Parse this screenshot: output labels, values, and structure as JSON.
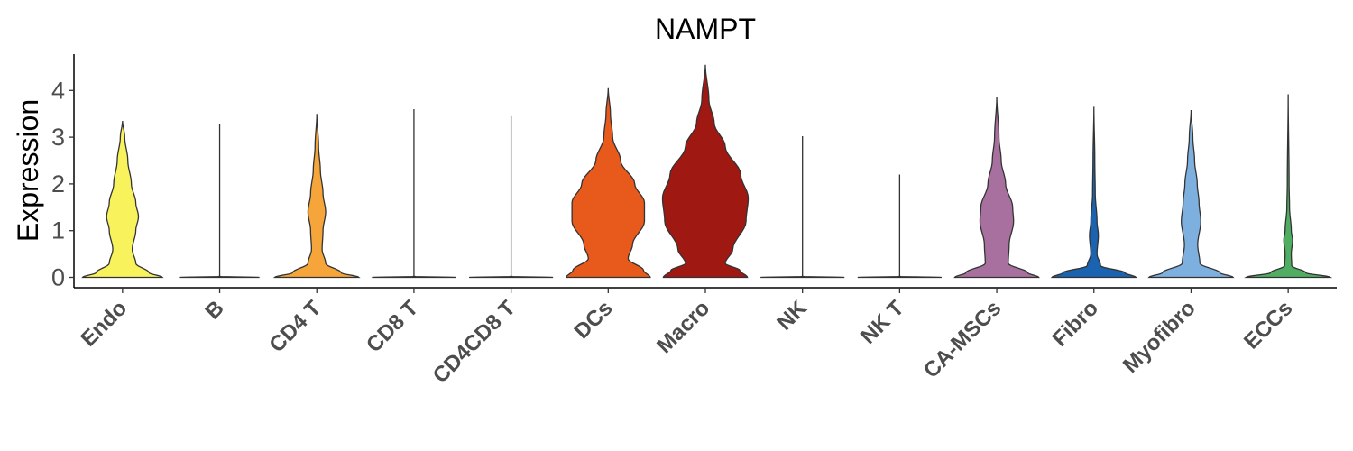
{
  "chart_data": {
    "type": "violin",
    "title": "NAMPT",
    "xlabel": "",
    "ylabel": "Expression",
    "ylim": [
      -0.2,
      4.8
    ],
    "yticks": [
      0,
      1,
      2,
      3,
      4
    ],
    "grid": false,
    "legend": "none",
    "categories": [
      "Endo",
      "B",
      "CD4 T",
      "CD8 T",
      "CD4CD8 T",
      "DCs",
      "Macro",
      "NK",
      "NK T",
      "CA-MSCs",
      "Fibro",
      "Myofibro",
      "ECCs"
    ],
    "series": [
      {
        "category": "Endo",
        "color": "#F8F35C",
        "max": 3.35,
        "profile": [
          [
            0,
            0.9
          ],
          [
            0.1,
            0.6
          ],
          [
            0.3,
            0.3
          ],
          [
            0.6,
            0.22
          ],
          [
            1.0,
            0.3
          ],
          [
            1.3,
            0.36
          ],
          [
            1.6,
            0.3
          ],
          [
            2.0,
            0.2
          ],
          [
            2.5,
            0.12
          ],
          [
            3.0,
            0.05
          ],
          [
            3.35,
            0
          ]
        ]
      },
      {
        "category": "B",
        "color": "#F8F35C",
        "max": 3.28,
        "profile": [
          [
            0,
            0.9
          ],
          [
            0.02,
            0.0
          ],
          [
            3.28,
            0
          ]
        ]
      },
      {
        "category": "CD4 T",
        "color": "#F5A53A",
        "max": 3.5,
        "profile": [
          [
            0,
            0.95
          ],
          [
            0.1,
            0.55
          ],
          [
            0.3,
            0.2
          ],
          [
            0.6,
            0.12
          ],
          [
            1.0,
            0.14
          ],
          [
            1.4,
            0.2
          ],
          [
            1.8,
            0.14
          ],
          [
            2.3,
            0.08
          ],
          [
            2.8,
            0.04
          ],
          [
            3.5,
            0
          ]
        ]
      },
      {
        "category": "CD8 T",
        "color": "#F5A53A",
        "max": 3.6,
        "profile": [
          [
            0,
            0.95
          ],
          [
            0.02,
            0.0
          ],
          [
            3.6,
            0
          ]
        ]
      },
      {
        "category": "CD4CD8 T",
        "color": "#F5A53A",
        "max": 3.45,
        "profile": [
          [
            0,
            0.95
          ],
          [
            0.02,
            0.0
          ],
          [
            3.45,
            0
          ]
        ]
      },
      {
        "category": "DCs",
        "color": "#E8591C",
        "max": 4.05,
        "profile": [
          [
            0,
            0.95
          ],
          [
            0.15,
            0.8
          ],
          [
            0.4,
            0.45
          ],
          [
            0.7,
            0.55
          ],
          [
            1.2,
            0.82
          ],
          [
            1.6,
            0.82
          ],
          [
            2.0,
            0.6
          ],
          [
            2.5,
            0.28
          ],
          [
            3.0,
            0.1
          ],
          [
            3.5,
            0.05
          ],
          [
            4.05,
            0
          ]
        ]
      },
      {
        "category": "Macro",
        "color": "#A01812",
        "max": 4.55,
        "profile": [
          [
            0,
            0.95
          ],
          [
            0.15,
            0.78
          ],
          [
            0.3,
            0.45
          ],
          [
            0.6,
            0.62
          ],
          [
            1.2,
            0.92
          ],
          [
            1.7,
            0.97
          ],
          [
            2.2,
            0.8
          ],
          [
            2.8,
            0.45
          ],
          [
            3.3,
            0.2
          ],
          [
            3.8,
            0.08
          ],
          [
            4.55,
            0
          ]
        ]
      },
      {
        "category": "NK",
        "color": "#A01812",
        "max": 3.02,
        "profile": [
          [
            0,
            0.95
          ],
          [
            0.02,
            0.0
          ],
          [
            3.02,
            0
          ]
        ]
      },
      {
        "category": "NK T",
        "color": "#A01812",
        "max": 2.2,
        "profile": [
          [
            0,
            0.95
          ],
          [
            0.02,
            0.0
          ],
          [
            2.2,
            0
          ]
        ]
      },
      {
        "category": "CA-MSCs",
        "color": "#A8709F",
        "max": 3.87,
        "profile": [
          [
            0,
            0.95
          ],
          [
            0.1,
            0.7
          ],
          [
            0.3,
            0.26
          ],
          [
            0.7,
            0.28
          ],
          [
            1.2,
            0.38
          ],
          [
            1.5,
            0.36
          ],
          [
            2.0,
            0.2
          ],
          [
            2.5,
            0.1
          ],
          [
            3.0,
            0.05
          ],
          [
            3.87,
            0
          ]
        ]
      },
      {
        "category": "Fibro",
        "color": "#1A63B0",
        "max": 3.65,
        "profile": [
          [
            0,
            0.95
          ],
          [
            0.1,
            0.7
          ],
          [
            0.25,
            0.15
          ],
          [
            0.5,
            0.07
          ],
          [
            0.9,
            0.1
          ],
          [
            1.2,
            0.07
          ],
          [
            1.8,
            0.03
          ],
          [
            2.5,
            0.02
          ],
          [
            3.65,
            0
          ]
        ]
      },
      {
        "category": "Myofibro",
        "color": "#7EB0DF",
        "max": 3.58,
        "profile": [
          [
            0,
            0.95
          ],
          [
            0.1,
            0.65
          ],
          [
            0.3,
            0.2
          ],
          [
            0.7,
            0.15
          ],
          [
            1.2,
            0.22
          ],
          [
            1.6,
            0.18
          ],
          [
            2.0,
            0.14
          ],
          [
            2.5,
            0.08
          ],
          [
            3.0,
            0.04
          ],
          [
            3.58,
            0
          ]
        ]
      },
      {
        "category": "ECCs",
        "color": "#4FAE62",
        "max": 3.92,
        "profile": [
          [
            0,
            0.95
          ],
          [
            0.1,
            0.4
          ],
          [
            0.25,
            0.08
          ],
          [
            0.5,
            0.07
          ],
          [
            0.8,
            0.1
          ],
          [
            1.0,
            0.07
          ],
          [
            1.5,
            0.03
          ],
          [
            2.0,
            0.02
          ],
          [
            3.92,
            0
          ]
        ]
      }
    ]
  }
}
